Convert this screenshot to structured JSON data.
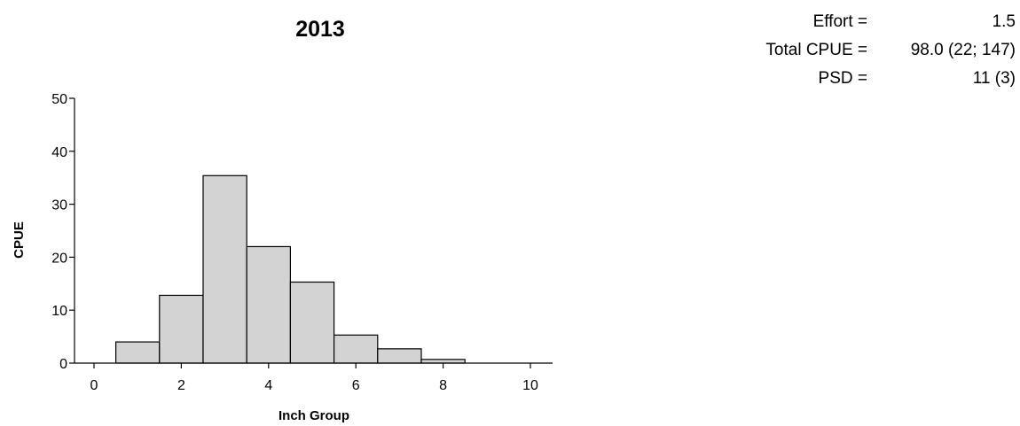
{
  "chart_data": {
    "type": "bar",
    "title": "2013",
    "xlabel": "Inch Group",
    "ylabel": "CPUE",
    "xlim": [
      -0.5,
      10.5
    ],
    "ylim": [
      0,
      50
    ],
    "xticks": [
      0,
      2,
      4,
      6,
      8,
      10
    ],
    "yticks": [
      0,
      10,
      20,
      30,
      40,
      50
    ],
    "bin_width": 1,
    "x": [
      0,
      1,
      2,
      3,
      4,
      5,
      6,
      7,
      8,
      9,
      10
    ],
    "values": [
      0,
      4,
      12.8,
      35.4,
      22,
      15.3,
      5.3,
      2.7,
      0.7,
      0,
      0
    ],
    "grid": false,
    "bar_color": "#d3d3d3",
    "edge_color": "#000000"
  },
  "stats": [
    {
      "label": "Effort =",
      "value": "1.5"
    },
    {
      "label": "Total CPUE =",
      "value": "98.0 (22; 147)"
    },
    {
      "label": "PSD =",
      "value": "11 (3)"
    }
  ]
}
